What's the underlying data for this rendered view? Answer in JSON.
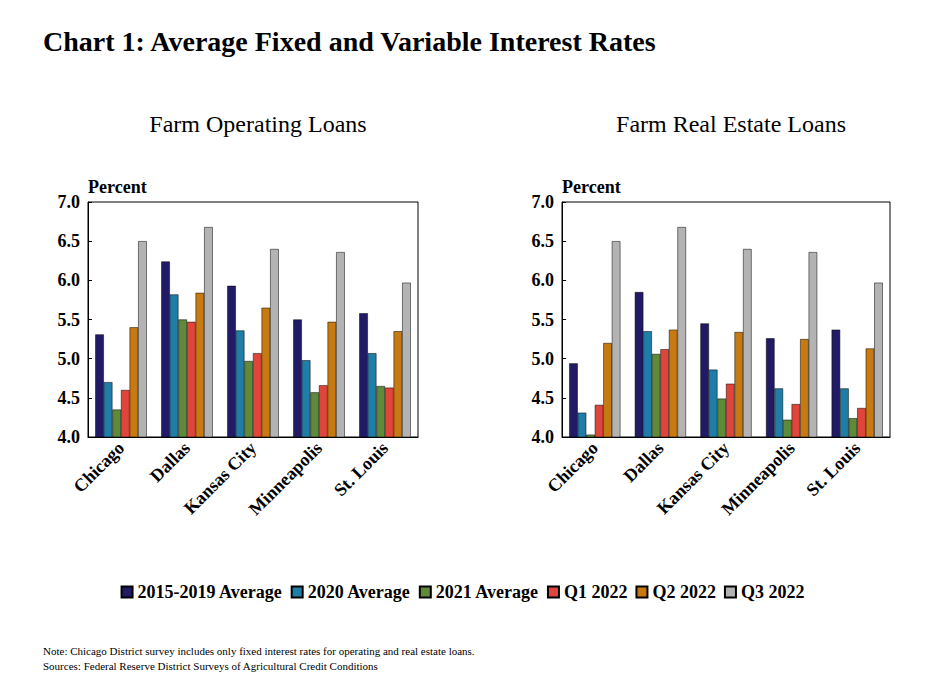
{
  "title": "Chart 1: Average Fixed and Variable Interest Rates",
  "legend": "bottom",
  "note": "Note: Chicago District survey includes only fixed interest rates for operating and real estate loans.",
  "source": "Sources: Federal Reserve District Surveys of Agricultural Credit Conditions",
  "chart_data": [
    {
      "type": "bar",
      "title": "Farm Operating Loans",
      "y_label": "Percent",
      "grid": false,
      "categories": [
        "Chicago",
        "Dallas",
        "Kansas City",
        "Minneapolis",
        "St. Louis"
      ],
      "ylim": [
        4,
        7
      ],
      "yticks": [
        {
          "value": 4,
          "label": "4.0"
        },
        4.5,
        {
          "value": 5,
          "label": "5.0"
        },
        5.5,
        {
          "value": 6,
          "label": "6.0"
        },
        6.5,
        {
          "value": 7,
          "label": "7.0"
        }
      ],
      "series": [
        {
          "name": "2015-2019 Average",
          "color": "#211b66",
          "values": [
            5.31,
            6.24,
            5.93,
            5.5,
            5.58
          ]
        },
        {
          "name": "2020 Average",
          "color": "#1f7ea8",
          "values": [
            4.7,
            5.82,
            5.36,
            4.98,
            5.07
          ]
        },
        {
          "name": "2021 Average",
          "color": "#5e8a3a",
          "values": [
            4.35,
            5.5,
            4.97,
            4.57,
            4.65
          ]
        },
        {
          "name": "Q1 2022",
          "color": "#e0453b",
          "values": [
            4.6,
            5.47,
            5.07,
            4.66,
            4.63
          ]
        },
        {
          "name": "Q2 2022",
          "color": "#c77a12",
          "values": [
            5.4,
            5.84,
            5.65,
            5.47,
            5.35
          ]
        },
        {
          "name": "Q3 2022",
          "color": "#b3b3b3",
          "values": [
            6.5,
            6.68,
            6.4,
            6.36,
            5.97
          ]
        }
      ]
    },
    {
      "type": "bar",
      "title": "Farm Real Estate Loans",
      "y_label": "Percent",
      "grid": false,
      "categories": [
        "Chicago",
        "Dallas",
        "Kansas City",
        "Minneapolis",
        "St. Louis"
      ],
      "ylim": [
        4,
        7
      ],
      "yticks": [
        {
          "value": 4,
          "label": "4.0"
        },
        4.5,
        {
          "value": 5,
          "label": "5.0"
        },
        5.5,
        {
          "value": 6,
          "label": "6.0"
        },
        6.5,
        {
          "value": 7,
          "label": "7.0"
        }
      ],
      "series": [
        {
          "name": "2015-2019 Average",
          "color": "#211b66",
          "values": [
            4.94,
            5.85,
            5.45,
            5.26,
            5.37
          ]
        },
        {
          "name": "2020 Average",
          "color": "#1f7ea8",
          "values": [
            4.31,
            5.35,
            4.86,
            4.62,
            4.62
          ]
        },
        {
          "name": "2021 Average",
          "color": "#5e8a3a",
          "values": [
            4.03,
            5.06,
            4.49,
            4.22,
            4.24
          ]
        },
        {
          "name": "Q1 2022",
          "color": "#e0453b",
          "values": [
            4.41,
            5.12,
            4.68,
            4.42,
            4.37
          ]
        },
        {
          "name": "Q2 2022",
          "color": "#c77a12",
          "values": [
            5.2,
            5.37,
            5.34,
            5.25,
            5.13
          ]
        },
        {
          "name": "Q3 2022",
          "color": "#b3b3b3",
          "values": [
            6.5,
            6.68,
            6.4,
            6.36,
            5.97
          ]
        }
      ]
    }
  ]
}
